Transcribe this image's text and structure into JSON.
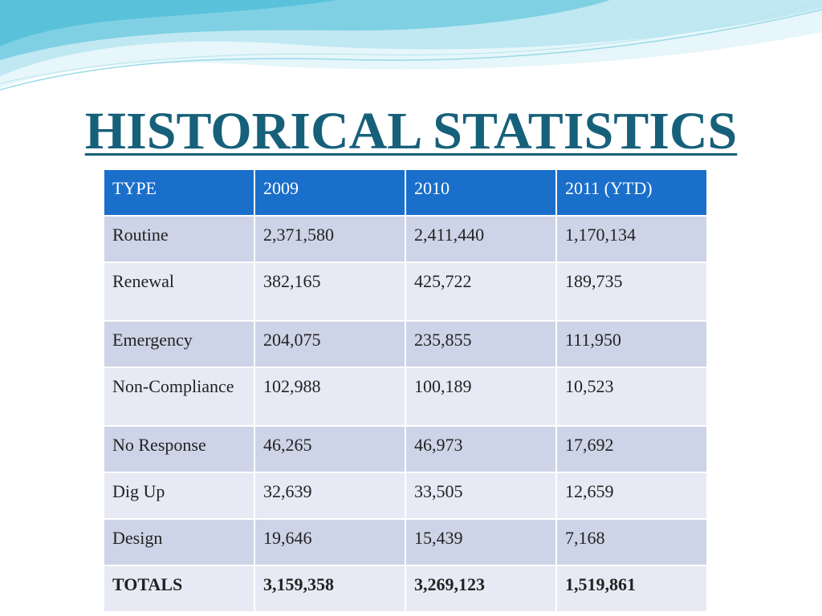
{
  "slide": {
    "title": "HISTORICAL STATISTICS"
  },
  "colors": {
    "title": "#17607a",
    "header_bg": "#1a6fcb",
    "row_dark": "#cdd4e7",
    "row_light": "#e7eaf4",
    "wave_light": "#cfeef5",
    "wave_mid": "#8fd6e6",
    "wave_dark": "#5ac4dc"
  },
  "table": {
    "headers": [
      "TYPE",
      "2009",
      "2010",
      "2011 (YTD)"
    ],
    "rows": [
      [
        "Routine",
        "2,371,580",
        "2,411,440",
        "1,170,134"
      ],
      [
        "Renewal",
        "382,165",
        "425,722",
        "189,735"
      ],
      [
        "Emergency",
        "204,075",
        "235,855",
        "111,950"
      ],
      [
        "Non-Compliance",
        "102,988",
        "100,189",
        "10,523"
      ],
      [
        "No Response",
        "46,265",
        "46,973",
        "17,692"
      ],
      [
        "Dig Up",
        "32,639",
        "33,505",
        "12,659"
      ],
      [
        "Design",
        "19,646",
        "15,439",
        "7,168"
      ]
    ],
    "totals": [
      "TOTALS",
      "3,159,358",
      "3,269,123",
      "1,519,861"
    ]
  }
}
